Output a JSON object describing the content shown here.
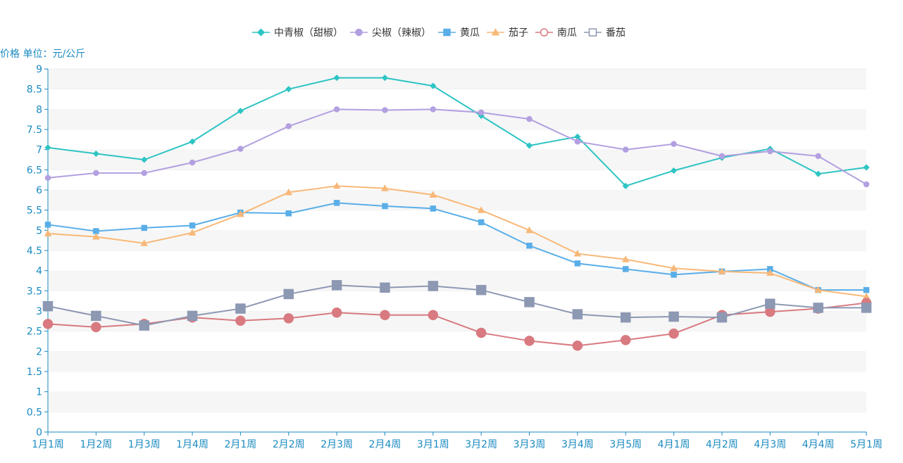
{
  "chart_data": {
    "type": "line",
    "ylabel": "价格 单位：元/公斤",
    "ylim": [
      0,
      9
    ],
    "yticks": [
      0,
      0.5,
      1,
      1.5,
      2,
      2.5,
      3,
      3.5,
      4,
      4.5,
      5,
      5.5,
      6,
      6.5,
      7,
      7.5,
      8,
      8.5,
      9
    ],
    "grid": "alternating horizontal bands",
    "legend_position": "top-center",
    "categories": [
      "1月1周",
      "1月2周",
      "1月3周",
      "1月4周",
      "2月1周",
      "2月2周",
      "2月3周",
      "2月4周",
      "3月1周",
      "3月2周",
      "3月3周",
      "3月4周",
      "3月5周",
      "4月1周",
      "4月2周",
      "4月3周",
      "4月4周",
      "5月1周"
    ],
    "series": [
      {
        "name": "中青椒（甜椒）",
        "color": "#2ec4c4",
        "marker": "diamond",
        "values": [
          7.05,
          6.9,
          6.75,
          7.2,
          7.96,
          8.5,
          8.78,
          8.78,
          8.58,
          7.84,
          7.1,
          7.32,
          6.1,
          6.48,
          6.8,
          7.02,
          6.4,
          6.56
        ]
      },
      {
        "name": "尖椒（辣椒）",
        "color": "#b2a0e0",
        "marker": "circle",
        "values": [
          6.3,
          6.42,
          6.42,
          6.68,
          7.02,
          7.58,
          8.0,
          7.98,
          8.0,
          7.92,
          7.76,
          7.2,
          7.0,
          7.14,
          6.84,
          6.96,
          6.84,
          6.14
        ]
      },
      {
        "name": "黄瓜",
        "color": "#5aaee8",
        "marker": "square",
        "values": [
          5.14,
          4.98,
          5.06,
          5.12,
          5.44,
          5.42,
          5.68,
          5.6,
          5.54,
          5.2,
          4.62,
          4.18,
          4.04,
          3.9,
          3.98,
          4.04,
          3.52,
          3.52
        ]
      },
      {
        "name": "茄子",
        "color": "#f8b878",
        "marker": "triangle",
        "values": [
          4.92,
          4.84,
          4.68,
          4.94,
          5.4,
          5.94,
          6.1,
          6.04,
          5.88,
          5.5,
          5.0,
          4.42,
          4.28,
          4.06,
          3.98,
          3.94,
          3.52,
          3.36
        ]
      },
      {
        "name": "南瓜",
        "color": "#d87a80",
        "marker": "circle",
        "values": [
          2.68,
          2.6,
          2.68,
          2.84,
          2.76,
          2.82,
          2.96,
          2.9,
          2.9,
          2.46,
          2.26,
          2.14,
          2.28,
          2.44,
          2.9,
          2.98,
          3.06,
          3.2
        ]
      },
      {
        "name": "番茄",
        "color": "#8d98b3",
        "marker": "square",
        "values": [
          3.12,
          2.88,
          2.64,
          2.88,
          3.06,
          3.42,
          3.64,
          3.58,
          3.62,
          3.52,
          3.22,
          2.92,
          2.84,
          2.86,
          2.84,
          3.18,
          3.08,
          3.08
        ]
      }
    ]
  }
}
